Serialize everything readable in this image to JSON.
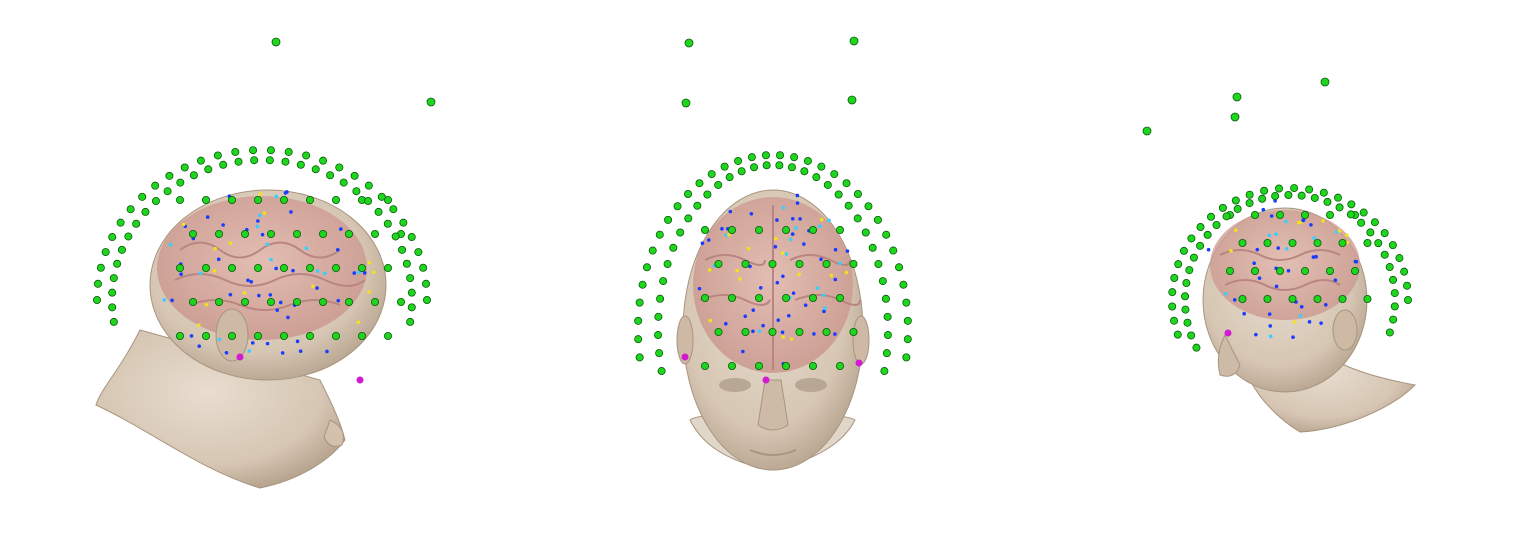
{
  "figure": {
    "background": "#ffffff",
    "colors": {
      "skin": "#d9cbbb",
      "skin_shadow": "#b8a794",
      "brain": "#d6a9a0",
      "brain_fold": "#b98580",
      "sensor_green": "#1fd61f",
      "sensor_outline": "#0a5a0a",
      "marker_blue": "#1a3cff",
      "marker_cyan": "#35d0ff",
      "marker_yellow": "#f3e21a",
      "marker_magenta": "#d21ad2",
      "marker_red": "#e02020"
    },
    "icons": [
      "head-left-view-icon",
      "head-front-view-icon",
      "head-right-view-icon"
    ],
    "panels": [
      {
        "name": "head-view-left",
        "label": ""
      },
      {
        "name": "head-view-front",
        "label": ""
      },
      {
        "name": "head-view-right",
        "label": ""
      }
    ]
  }
}
